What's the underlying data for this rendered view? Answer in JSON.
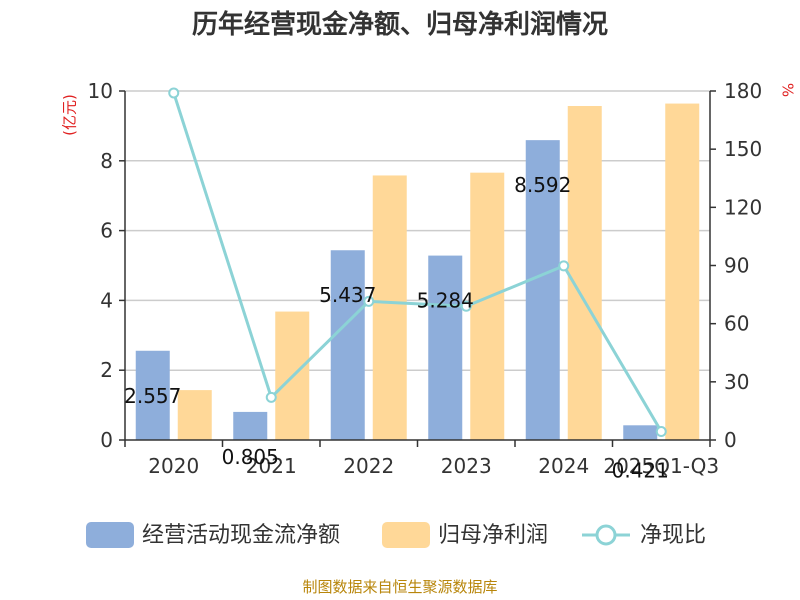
{
  "chart_data": {
    "type": "bar",
    "title": "历年经营现金净额、归母净利润情况",
    "left_axis_unit": "(亿元)",
    "right_axis_unit": "%",
    "categories": [
      "2020",
      "2021",
      "2022",
      "2023",
      "2024",
      "2025Q1-Q3"
    ],
    "ylim_left": [
      0,
      10
    ],
    "yticks_left": [
      0,
      2,
      4,
      6,
      8,
      10
    ],
    "ylim_right": [
      0,
      180
    ],
    "yticks_right": [
      0,
      30,
      60,
      90,
      120,
      150,
      180
    ],
    "series": [
      {
        "name": "经营活动现金流净额",
        "type": "bar",
        "axis": "left",
        "color": "#8eaedb",
        "values": [
          2.557,
          0.805,
          5.437,
          5.284,
          8.592,
          0.421
        ],
        "labels": [
          "2.557",
          "0.805",
          "5.437",
          "5.284",
          "8.592",
          "0.421"
        ]
      },
      {
        "name": "归母净利润",
        "type": "bar",
        "axis": "left",
        "color": "#ffd898",
        "values": [
          1.43,
          3.68,
          7.58,
          7.66,
          9.57,
          9.64
        ]
      },
      {
        "name": "净现比",
        "type": "line",
        "axis": "right",
        "color": "#8cd3d6",
        "values": [
          179,
          22,
          71.5,
          69,
          89.8,
          4.4
        ]
      }
    ],
    "grid": true,
    "legend_position": "bottom"
  },
  "source_note": "制图数据来自恒生聚源数据库"
}
